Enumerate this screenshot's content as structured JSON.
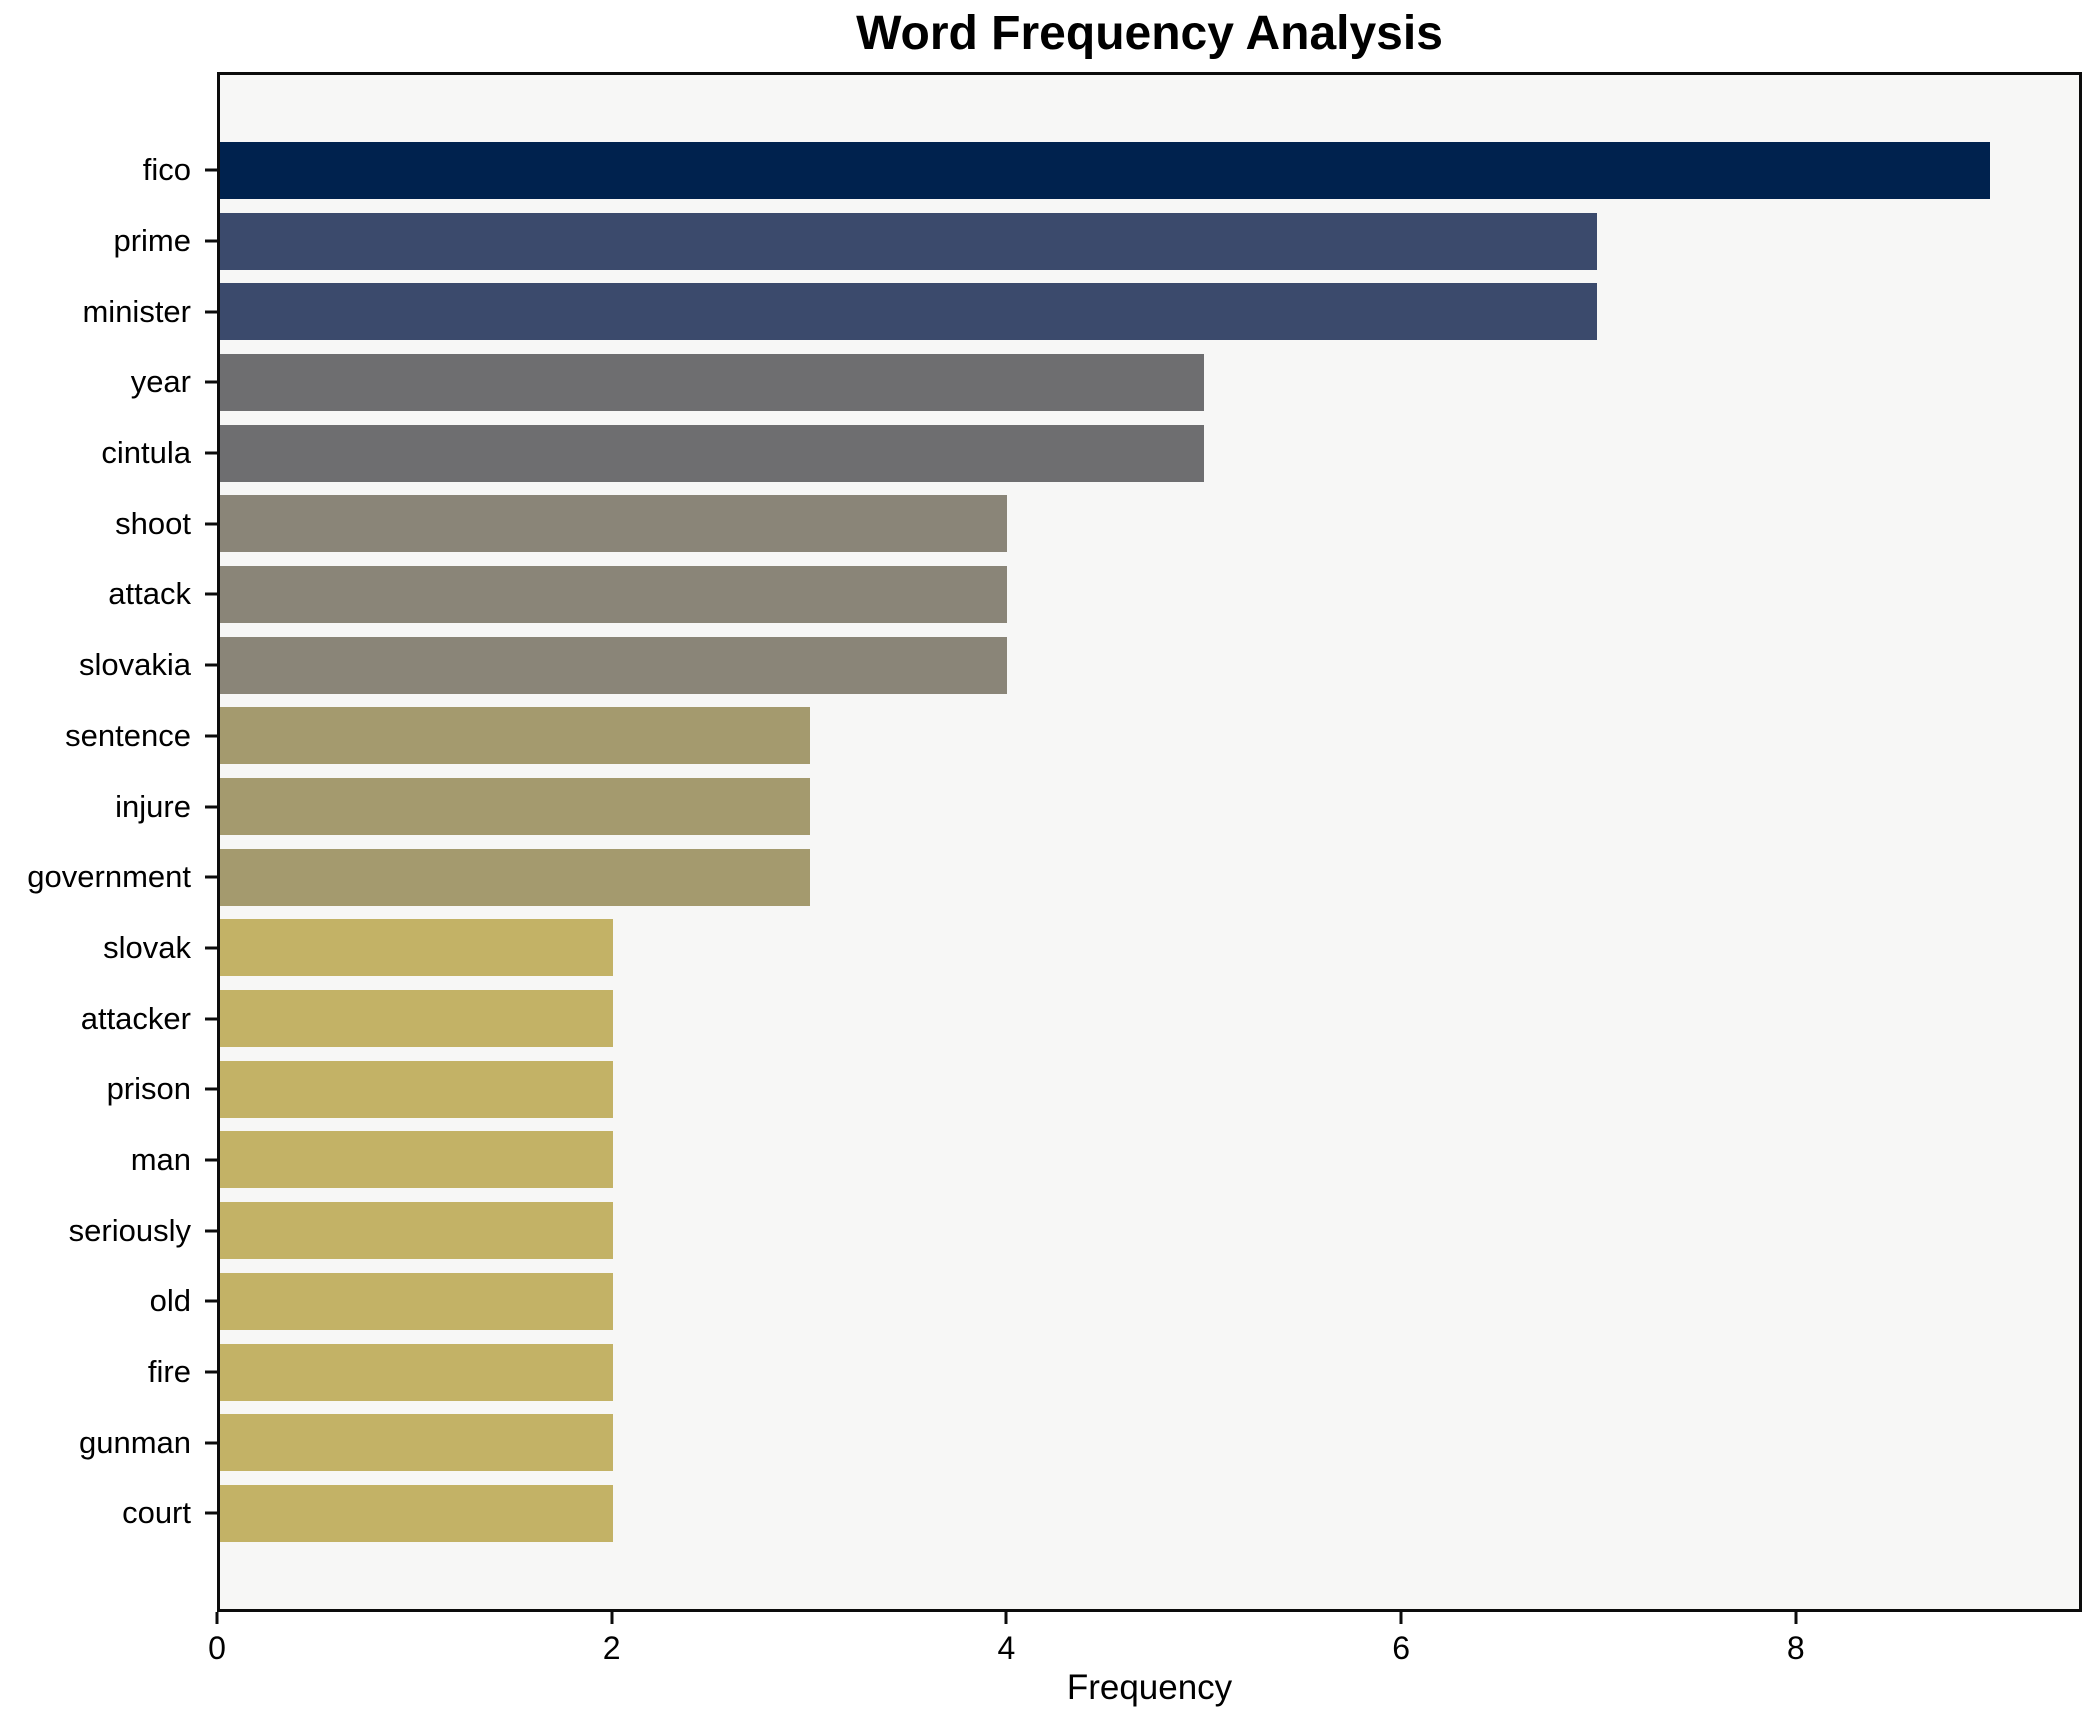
{
  "title": "Word Frequency Analysis",
  "x_axis_label": "Frequency",
  "colors": {
    "figure_background": "#ffffff",
    "plot_background": "#f7f7f6",
    "axis_line": "#0c0c0c",
    "text": "#000000"
  },
  "chart_data": {
    "type": "bar",
    "orientation": "horizontal",
    "title": "Word Frequency Analysis",
    "xlabel": "Frequency",
    "ylabel": "",
    "grid": false,
    "legend_position": "none",
    "categories": [
      "fico",
      "prime",
      "minister",
      "year",
      "cintula",
      "shoot",
      "attack",
      "slovakia",
      "sentence",
      "injure",
      "government",
      "slovak",
      "attacker",
      "prison",
      "man",
      "seriously",
      "old",
      "fire",
      "gunman",
      "court"
    ],
    "values": [
      9,
      7,
      7,
      5,
      5,
      4,
      4,
      4,
      3,
      3,
      3,
      2,
      2,
      2,
      2,
      2,
      2,
      2,
      2,
      2
    ],
    "xlim": [
      0,
      9.45
    ],
    "xticks": [
      0,
      2,
      4,
      6,
      8
    ],
    "value_colors": {
      "9": "#00224e",
      "7": "#3b4a6c",
      "5": "#6e6e70",
      "4": "#8a8578",
      "3": "#a49a6e",
      "2": "#c3b266"
    }
  }
}
